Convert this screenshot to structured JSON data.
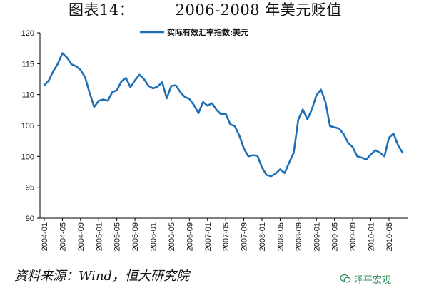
{
  "title": "图表14：        2006-2008 年美元贬值",
  "source": "资料来源：Wind，恒大研究院",
  "watermark": "泽平宏观",
  "chart_data": {
    "type": "line",
    "xlabel": "",
    "ylabel": "",
    "ylim": [
      90,
      120
    ],
    "yticks": [
      90,
      95,
      100,
      105,
      110,
      115,
      120
    ],
    "xtick_labels": [
      "2004-01",
      "2004-05",
      "2004-09",
      "2005-01",
      "2005-05",
      "2005-09",
      "2006-01",
      "2006-05",
      "2006-09",
      "2007-01",
      "2007-05",
      "2007-09",
      "2008-01",
      "2008-05",
      "2008-09",
      "2009-01",
      "2009-05",
      "2009-09",
      "2010-01",
      "2010-05"
    ],
    "grid": false,
    "legend_position": "top-center",
    "line_color": "#1f6fb5",
    "series": [
      {
        "name": "实际有效汇率指数:美元",
        "x": [
          "2004-01",
          "2004-02",
          "2004-03",
          "2004-04",
          "2004-05",
          "2004-06",
          "2004-07",
          "2004-08",
          "2004-09",
          "2004-10",
          "2004-11",
          "2004-12",
          "2005-01",
          "2005-02",
          "2005-03",
          "2005-04",
          "2005-05",
          "2005-06",
          "2005-07",
          "2005-08",
          "2005-09",
          "2005-10",
          "2005-11",
          "2005-12",
          "2006-01",
          "2006-02",
          "2006-03",
          "2006-04",
          "2006-05",
          "2006-06",
          "2006-07",
          "2006-08",
          "2006-09",
          "2006-10",
          "2006-11",
          "2006-12",
          "2007-01",
          "2007-02",
          "2007-03",
          "2007-04",
          "2007-05",
          "2007-06",
          "2007-07",
          "2007-08",
          "2007-09",
          "2007-10",
          "2007-11",
          "2007-12",
          "2008-01",
          "2008-02",
          "2008-03",
          "2008-04",
          "2008-05",
          "2008-06",
          "2008-07",
          "2008-08",
          "2008-09",
          "2008-10",
          "2008-11",
          "2008-12",
          "2009-01",
          "2009-02",
          "2009-03",
          "2009-04",
          "2009-05",
          "2009-06",
          "2009-07",
          "2009-08",
          "2009-09",
          "2009-10",
          "2009-11",
          "2009-12",
          "2010-01",
          "2010-02",
          "2010-03",
          "2010-04",
          "2010-05",
          "2010-06",
          "2010-07",
          "2010-08"
        ],
        "values": [
          111.5,
          112.3,
          113.8,
          115.0,
          116.7,
          116.0,
          114.9,
          114.6,
          114.0,
          112.8,
          110.3,
          108.0,
          109.0,
          109.2,
          109.0,
          110.4,
          110.7,
          112.1,
          112.7,
          111.2,
          112.3,
          113.2,
          112.5,
          111.4,
          111.0,
          111.3,
          112.0,
          109.4,
          111.4,
          111.5,
          110.4,
          109.6,
          109.3,
          108.3,
          107.0,
          108.8,
          108.2,
          108.6,
          107.5,
          106.8,
          106.9,
          105.2,
          104.9,
          103.4,
          101.3,
          100.0,
          100.2,
          100.1,
          98.2,
          97.0,
          96.8,
          97.2,
          97.9,
          97.3,
          99.0,
          100.6,
          105.9,
          107.6,
          106.0,
          107.6,
          109.9,
          110.8,
          108.8,
          104.9,
          104.7,
          104.5,
          103.6,
          102.2,
          101.5,
          100.0,
          99.8,
          99.5,
          100.3,
          101.0,
          100.6,
          100.0,
          103.0,
          103.7,
          101.8,
          100.6
        ]
      }
    ]
  }
}
